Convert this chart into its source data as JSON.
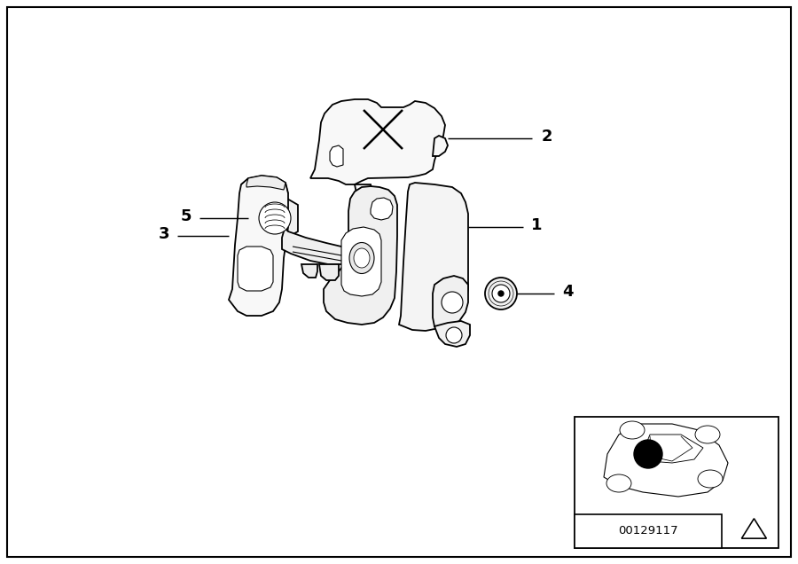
{
  "background_color": "#ffffff",
  "border_color": "#000000",
  "line_color": "#000000",
  "fill_light": "#f8f8f8",
  "fill_mid": "#eeeeee",
  "diagram_id": "00129117",
  "lw_main": 1.3,
  "lw_detail": 0.8,
  "label_1": "1",
  "label_2": "2",
  "label_3": "3",
  "label_4": "4",
  "label_5": "5"
}
